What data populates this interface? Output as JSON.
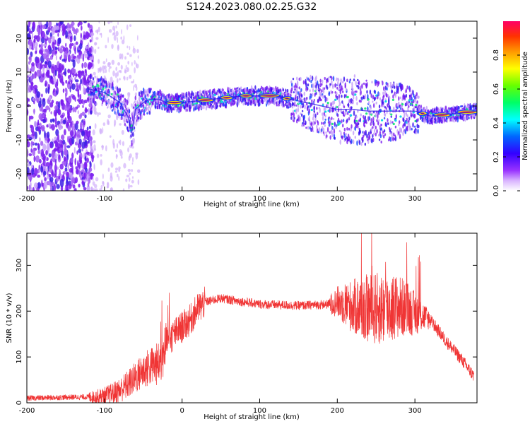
{
  "figure": {
    "title": "S124.2023.080.02.25.G32"
  },
  "chart_data": [
    {
      "type": "heatmap",
      "xlabel": "Height of straight line (km)",
      "ylabel": "Frequency (Hz)",
      "xlim": [
        -200,
        380
      ],
      "ylim": [
        -25,
        25
      ],
      "xticks": [
        -200,
        -100,
        0,
        100,
        200,
        300
      ],
      "yticks": [
        -20,
        -10,
        0,
        10,
        20
      ],
      "colorbar": {
        "label": "Normalized spectral amplitude",
        "range": [
          0,
          1
        ],
        "ticks": [
          "0.0",
          "0.2",
          "0.4",
          "0.6",
          "0.8"
        ],
        "colors": [
          "#ffffff",
          "#d9b3ff",
          "#9933ff",
          "#3300ff",
          "#0066ff",
          "#00ffff",
          "#00ff66",
          "#66ff00",
          "#ffff00",
          "#ff9900",
          "#ff3300",
          "#ff0066"
        ]
      },
      "trace": {
        "x": [
          -120,
          -100,
          -80,
          -70,
          -65,
          -60,
          -50,
          -40,
          -30,
          -20,
          0,
          20,
          40,
          60,
          80,
          100,
          120,
          140,
          160,
          180,
          200,
          220,
          240,
          260,
          280,
          300,
          320,
          340,
          360,
          380
        ],
        "y": [
          5,
          4,
          1,
          -3,
          -8,
          -1,
          1,
          2,
          2,
          1,
          1,
          1.5,
          2,
          2.5,
          3,
          3,
          3,
          2,
          1,
          0,
          -1,
          -1,
          -1.5,
          -1.5,
          -1.5,
          -1.5,
          -3,
          -2.5,
          -2,
          -1.5
        ]
      }
    },
    {
      "type": "line",
      "xlabel": "Height of straight line (km)",
      "ylabel": "SNR (10 * v/v)",
      "xlim": [
        -200,
        380
      ],
      "ylim": [
        0,
        370
      ],
      "xticks": [
        -200,
        -100,
        0,
        100,
        200,
        300
      ],
      "yticks": [
        0,
        100,
        200,
        300
      ],
      "color": "#f03535",
      "series": [
        {
          "x": [
            -200,
            -150,
            -110,
            -100,
            -90,
            -80,
            -70,
            -60,
            -50,
            -40,
            -30,
            -25,
            -20,
            -10,
            0,
            10,
            20,
            30,
            50,
            80,
            100,
            150,
            190,
            200,
            220,
            240,
            260,
            280,
            290,
            300,
            310,
            320,
            340,
            360,
            375
          ],
          "y": [
            10,
            12,
            13,
            15,
            20,
            28,
            40,
            55,
            70,
            80,
            85,
            100,
            130,
            150,
            165,
            180,
            205,
            220,
            228,
            220,
            215,
            212,
            215,
            220,
            210,
            205,
            205,
            210,
            205,
            195,
            190,
            180,
            135,
            95,
            60
          ]
        }
      ]
    }
  ]
}
